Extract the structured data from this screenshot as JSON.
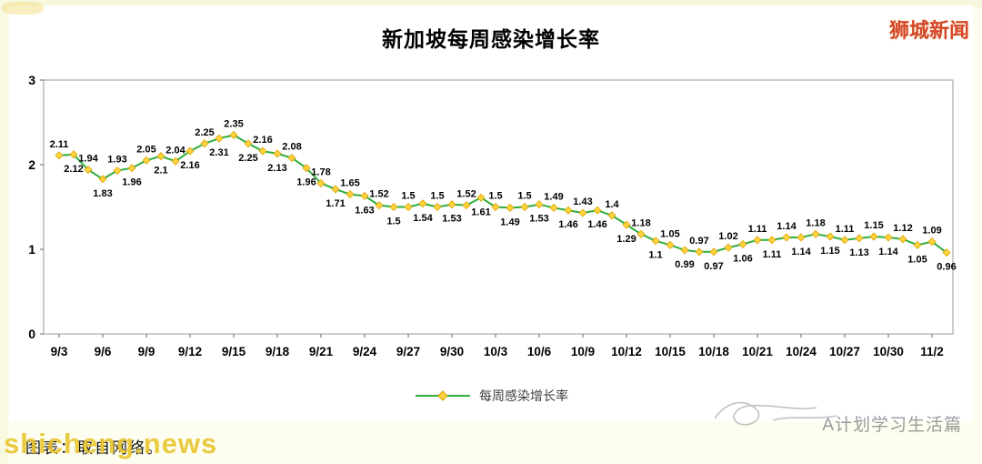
{
  "page": {
    "brand_top_right": "狮城新闻",
    "watermark": "shicheng.news",
    "caption": "图表：取自网络。",
    "footer_brand": "A计划学习生活篇"
  },
  "chart_data": {
    "type": "line",
    "title": "新加坡每周感染增长率",
    "xlabel": "",
    "ylabel": "",
    "ylim": [
      0,
      3
    ],
    "yticks": [
      "0",
      "1",
      "2",
      "3"
    ],
    "grid": false,
    "legend": [
      "每周感染增长率"
    ],
    "legend_position": "bottom",
    "line_color": "#2fae3c",
    "marker_color": "#ffd23f",
    "marker_edge_color": "#d9a400",
    "label_color": "#000000",
    "x_tick_every": 3,
    "x_tick_labels": [
      "9/3",
      "9/6",
      "9/9",
      "9/12",
      "9/15",
      "9/18",
      "9/21",
      "9/24",
      "9/27",
      "9/30",
      "10/3",
      "10/6",
      "10/9",
      "10/12",
      "10/15",
      "10/18",
      "10/21",
      "10/24",
      "10/27",
      "10/30",
      "11/2"
    ],
    "values": [
      "2.11",
      "2.12",
      "1.94",
      "1.83",
      "1.93",
      "1.96",
      "2.05",
      "2.1",
      "2.04",
      "2.16",
      "2.25",
      "2.31",
      "2.35",
      "2.25",
      "2.16",
      "2.13",
      "2.08",
      "1.96",
      "1.78",
      "1.71",
      "1.65",
      "1.63",
      "1.52",
      "1.5",
      "1.5",
      "1.54",
      "1.5",
      "1.53",
      "1.52",
      "1.61",
      "1.5",
      "1.49",
      "1.5",
      "1.53",
      "1.49",
      "1.46",
      "1.43",
      "1.46",
      "1.4",
      "1.29",
      "1.18",
      "1.1",
      "1.05",
      "0.99",
      "0.97",
      "0.97",
      "1.02",
      "1.06",
      "1.11",
      "1.11",
      "1.14",
      "1.14",
      "1.18",
      "1.15",
      "1.11",
      "1.13",
      "1.15",
      "1.14",
      "1.12",
      "1.05",
      "1.09",
      "0.96"
    ]
  }
}
